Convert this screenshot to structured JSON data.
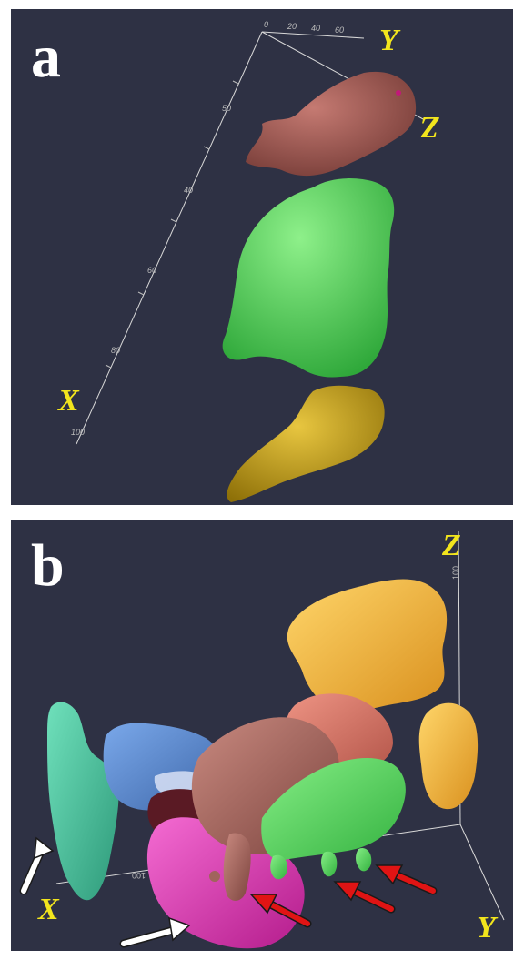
{
  "panels": {
    "a": {
      "letter": "a",
      "axis_labels": {
        "x": "X",
        "y": "Y",
        "z": "Z"
      },
      "ticks_top": [
        "0",
        "20",
        "40",
        "60"
      ],
      "ticks_side": [
        "50",
        "40",
        "60",
        "80",
        "100"
      ]
    },
    "b": {
      "letter": "b",
      "axis_labels": {
        "x": "X",
        "y": "Y",
        "z": "Z"
      },
      "ticks_x": [
        "100"
      ],
      "ticks_z": [
        "100"
      ]
    }
  },
  "colors": {
    "background": "#2e3144",
    "label_yellow": "#f2e51d",
    "axis_line": "#d8d8d8",
    "red_arrow": "#e01414",
    "white_arrow": "#ffffff",
    "brown": "#9c5550",
    "green": "#4fd85a",
    "gold": "#c9a214",
    "orange": "#f2b23a",
    "teal": "#4cc4a0",
    "blue": "#5a86cc",
    "pink": "#e238b8",
    "salmon": "#d8766a",
    "dark_red": "#5a1a24"
  }
}
